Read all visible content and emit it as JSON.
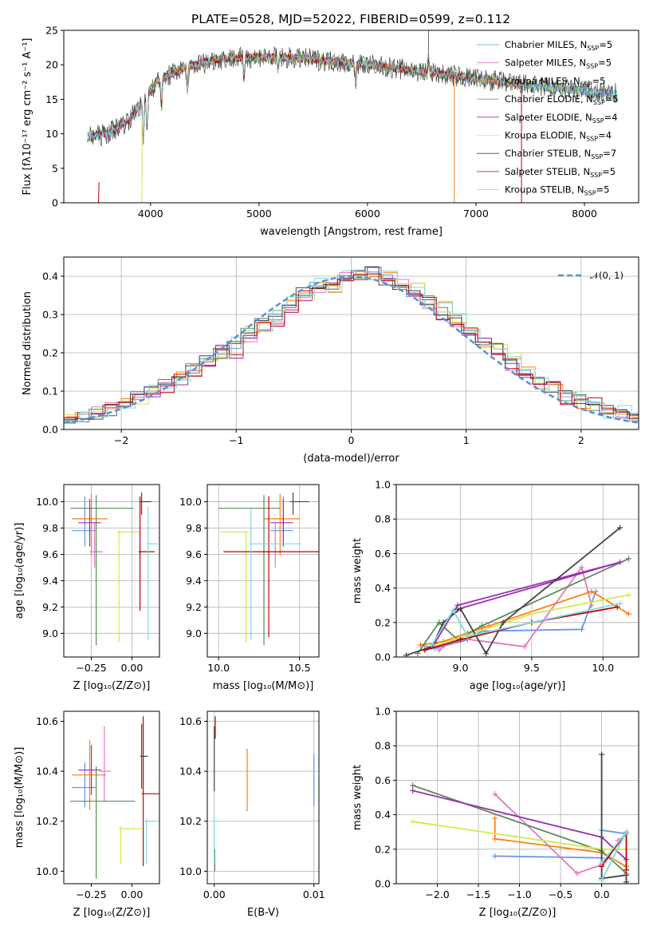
{
  "title": "PLATE=0528, MJD=52022, FIBERID=0599, z=0.112",
  "models": [
    {
      "name": "Chabrier MILES",
      "nssp": "5",
      "color": "#6495ed"
    },
    {
      "name": "Salpeter MILES",
      "nssp": "5",
      "color": "#e377c2"
    },
    {
      "name": "Kroupa MILES",
      "nssp": "5",
      "color": "#ff7f0e"
    },
    {
      "name": "Chabrier ELODIE",
      "nssp": "5",
      "color": "#5a8a5a"
    },
    {
      "name": "Salpeter ELODIE",
      "nssp": "4",
      "color": "#9b30b0"
    },
    {
      "name": "Kroupa ELODIE",
      "nssp": "4",
      "color": "#d4e84a"
    },
    {
      "name": "Chabrier STELIB",
      "nssp": "7",
      "color": "#444444"
    },
    {
      "name": "Salpeter STELIB",
      "nssp": "5",
      "color": "#c00000"
    },
    {
      "name": "Kroupa STELIB",
      "nssp": "5",
      "color": "#7fd8e0"
    }
  ],
  "chart_data": [
    {
      "type": "line",
      "id": "spectrum",
      "title": "PLATE=0528, MJD=52022, FIBERID=0599, z=0.112",
      "xlabel": "wavelength [Angstrom, rest frame]",
      "ylabel": "Flux [fλ10⁻¹⁷ erg cm⁻² s⁻¹ A⁻¹]",
      "xlim": [
        3200,
        8500
      ],
      "ylim": [
        0,
        25
      ],
      "xticks": [
        "4000",
        "5000",
        "6000",
        "7000",
        "8000"
      ],
      "yticks": [
        "0",
        "5",
        "10",
        "15",
        "20",
        "25"
      ],
      "continuum": [
        [
          3420,
          9.5
        ],
        [
          3600,
          10
        ],
        [
          3800,
          12
        ],
        [
          3950,
          15
        ],
        [
          4050,
          17.5
        ],
        [
          4300,
          19.5
        ],
        [
          4600,
          20.8
        ],
        [
          5000,
          21.2
        ],
        [
          5500,
          20.8
        ],
        [
          6000,
          20
        ],
        [
          6500,
          19
        ],
        [
          7000,
          18
        ],
        [
          7500,
          17
        ],
        [
          8000,
          16.2
        ],
        [
          8300,
          15.8
        ]
      ],
      "legend_suffix": "N_SSP="
    },
    {
      "type": "line",
      "id": "residuals",
      "xlabel": "(data-model)/error",
      "ylabel": "Normed distribution",
      "xlim": [
        -2.5,
        2.5
      ],
      "ylim": [
        0,
        0.45
      ],
      "xticks": [
        "−2",
        "−1",
        "0",
        "1",
        "2"
      ],
      "yticks": [
        "0.0",
        "0.1",
        "0.2",
        "0.3",
        "0.4"
      ],
      "reference_curve": "𝒩(0, 1)",
      "reference_color": "#5b8fd8",
      "histograms": [
        [
          0.025,
          0.03,
          0.04,
          0.05,
          0.07,
          0.09,
          0.1,
          0.12,
          0.14,
          0.16,
          0.18,
          0.2,
          0.22,
          0.25,
          0.28,
          0.3,
          0.33,
          0.36,
          0.37,
          0.38,
          0.39,
          0.4,
          0.41,
          0.39,
          0.38,
          0.36,
          0.34,
          0.31,
          0.29,
          0.26,
          0.23,
          0.21,
          0.18,
          0.15,
          0.13,
          0.11,
          0.09,
          0.08,
          0.06,
          0.05,
          0.04,
          0.03
        ],
        [
          0.02,
          0.03,
          0.05,
          0.06,
          0.06,
          0.09,
          0.09,
          0.11,
          0.13,
          0.15,
          0.16,
          0.21,
          0.2,
          0.24,
          0.27,
          0.28,
          0.31,
          0.35,
          0.36,
          0.38,
          0.4,
          0.39,
          0.42,
          0.4,
          0.39,
          0.35,
          0.33,
          0.3,
          0.27,
          0.25,
          0.24,
          0.2,
          0.16,
          0.14,
          0.12,
          0.12,
          0.08,
          0.07,
          0.07,
          0.05,
          0.04,
          0.03
        ],
        [
          0.03,
          0.04,
          0.04,
          0.06,
          0.07,
          0.08,
          0.11,
          0.12,
          0.14,
          0.17,
          0.19,
          0.19,
          0.23,
          0.26,
          0.27,
          0.31,
          0.34,
          0.35,
          0.38,
          0.37,
          0.41,
          0.4,
          0.4,
          0.41,
          0.37,
          0.38,
          0.32,
          0.32,
          0.29,
          0.26,
          0.22,
          0.21,
          0.19,
          0.16,
          0.12,
          0.11,
          0.1,
          0.07,
          0.06,
          0.04,
          0.05,
          0.03
        ]
      ]
    },
    {
      "type": "scatter",
      "id": "age-z",
      "xlabel": "Z [log₁₀(Z/Z⊙)]",
      "ylabel": "age  [log₁₀(age/yr)]",
      "xlim": [
        -0.42,
        0.17
      ],
      "ylim": [
        8.82,
        10.13
      ],
      "xticks": [
        "−0.25",
        "0.00"
      ],
      "yticks": [
        "9.0",
        "9.2",
        "9.4",
        "9.6",
        "9.8",
        "10.0"
      ],
      "points": [
        {
          "model": 0,
          "x": -0.29,
          "y": 9.78,
          "xerr": [
            0.08,
            0.07
          ],
          "yerr": [
            0.12,
            0.26
          ]
        },
        {
          "model": 1,
          "x": -0.23,
          "y": 9.62,
          "xerr": [
            0.03,
            0.05
          ],
          "yerr": [
            0.12,
            0.22
          ]
        },
        {
          "model": 2,
          "x": -0.25,
          "y": 9.87,
          "xerr": [
            0.12,
            0.1
          ],
          "yerr": [
            0.28,
            0.19
          ]
        },
        {
          "model": 3,
          "x": -0.22,
          "y": 9.95,
          "xerr": [
            0.16,
            0.23
          ],
          "yerr": [
            1.04,
            0.1
          ]
        },
        {
          "model": 4,
          "x": -0.26,
          "y": 9.84,
          "xerr": [
            0.07,
            0.07
          ],
          "yerr": [
            0.18,
            0.18
          ]
        },
        {
          "model": 5,
          "x": -0.08,
          "y": 9.77,
          "xerr": [
            0.01,
            0.13
          ],
          "yerr": [
            0.84,
            0.01
          ]
        },
        {
          "model": 6,
          "x": 0.06,
          "y": 10.0,
          "xerr": [
            0.01,
            0.06
          ],
          "yerr": [
            0.1,
            0.07
          ]
        },
        {
          "model": 7,
          "x": 0.05,
          "y": 9.62,
          "xerr": [
            0.01,
            0.09
          ],
          "yerr": [
            0.45,
            0.42
          ]
        },
        {
          "model": 8,
          "x": 0.1,
          "y": 9.68,
          "xerr": [
            0.01,
            0.06
          ],
          "yerr": [
            0.73,
            0.28
          ]
        }
      ]
    },
    {
      "type": "scatter",
      "id": "age-mass",
      "xlabel": "mass [log₁₀(M/M⊙)]",
      "ylabel": "",
      "xlim": [
        9.93,
        10.62
      ],
      "ylim": [
        8.82,
        10.13
      ],
      "xticks": [
        "10.0",
        "10.5"
      ],
      "yticks": [
        "9.0",
        "9.2",
        "9.4",
        "9.6",
        "9.8",
        "10.0"
      ],
      "points": [
        {
          "model": 0,
          "x": 10.4,
          "y": 9.78,
          "xerr": [
            0.08,
            0.06
          ],
          "yerr": [
            0.12,
            0.26
          ]
        },
        {
          "model": 1,
          "x": 10.35,
          "y": 9.62,
          "xerr": [
            0.04,
            0.06
          ],
          "yerr": [
            0.12,
            0.22
          ]
        },
        {
          "model": 2,
          "x": 10.38,
          "y": 9.87,
          "xerr": [
            0.1,
            0.12
          ],
          "yerr": [
            0.28,
            0.19
          ]
        },
        {
          "model": 3,
          "x": 10.28,
          "y": 9.95,
          "xerr": [
            0.28,
            0.1
          ],
          "yerr": [
            1.04,
            0.1
          ]
        },
        {
          "model": 4,
          "x": 10.4,
          "y": 9.84,
          "xerr": [
            0.08,
            0.06
          ],
          "yerr": [
            0.18,
            0.18
          ]
        },
        {
          "model": 5,
          "x": 10.17,
          "y": 9.77,
          "xerr": [
            0.16,
            0.02
          ],
          "yerr": [
            0.84,
            0.01
          ]
        },
        {
          "model": 6,
          "x": 10.46,
          "y": 10.0,
          "xerr": [
            0.02,
            0.1
          ],
          "yerr": [
            0.1,
            0.07
          ]
        },
        {
          "model": 7,
          "x": 10.31,
          "y": 9.62,
          "xerr": [
            0.28,
            0.32
          ],
          "yerr": [
            0.65,
            0.42
          ]
        },
        {
          "model": 8,
          "x": 10.2,
          "y": 9.68,
          "xerr": [
            0.01,
            0.31
          ],
          "yerr": [
            0.73,
            0.28
          ]
        }
      ]
    },
    {
      "type": "line",
      "id": "weight-age",
      "xlabel": "age  [log₁₀(age/yr)]",
      "ylabel": "mass weight",
      "xlim": [
        8.55,
        10.25
      ],
      "ylim": [
        0,
        1
      ],
      "xticks": [
        "9.0",
        "9.5",
        "10.0"
      ],
      "yticks": [
        "0.0",
        "0.2",
        "0.4",
        "0.6",
        "0.8",
        "1.0"
      ],
      "series": [
        [
          [
            8.72,
            0.07
          ],
          [
            8.82,
            0.05
          ],
          [
            9.05,
            0.1
          ],
          [
            9.15,
            0.15
          ],
          [
            9.85,
            0.16
          ],
          [
            9.95,
            0.38
          ]
        ],
        [
          [
            8.85,
            0.04
          ],
          [
            8.98,
            0.11
          ],
          [
            9.45,
            0.06
          ],
          [
            9.85,
            0.52
          ],
          [
            9.92,
            0.3
          ]
        ],
        [
          [
            8.72,
            0.07
          ],
          [
            8.88,
            0.09
          ],
          [
            9.05,
            0.14
          ],
          [
            9.2,
            0.18
          ],
          [
            9.92,
            0.38
          ],
          [
            10.18,
            0.25
          ]
        ],
        [
          [
            8.7,
            0.02
          ],
          [
            8.85,
            0.2
          ],
          [
            8.98,
            0.1
          ],
          [
            9.15,
            0.18
          ],
          [
            10.18,
            0.57
          ]
        ],
        [
          [
            8.82,
            0.08
          ],
          [
            8.98,
            0.3
          ],
          [
            10.12,
            0.55
          ],
          [
            8.95,
            0.27
          ]
        ],
        [
          [
            8.8,
            0.06
          ],
          [
            8.95,
            0.1
          ],
          [
            9.5,
            0.25
          ],
          [
            10.18,
            0.36
          ]
        ],
        [
          [
            8.62,
            0.01
          ],
          [
            8.8,
            0.06
          ],
          [
            8.88,
            0.2
          ],
          [
            9.0,
            0.28
          ],
          [
            9.18,
            0.02
          ],
          [
            9.3,
            0.2
          ],
          [
            10.12,
            0.75
          ]
        ],
        [
          [
            8.75,
            0.04
          ],
          [
            9.0,
            0.1
          ],
          [
            9.5,
            0.2
          ],
          [
            10.1,
            0.29
          ]
        ],
        [
          [
            8.8,
            0.07
          ],
          [
            8.95,
            0.27
          ],
          [
            9.05,
            0.12
          ],
          [
            10.12,
            0.31
          ]
        ]
      ]
    },
    {
      "type": "scatter",
      "id": "mass-z",
      "xlabel": "Z [log₁₀(Z/Z⊙)]",
      "ylabel": "mass [log₁₀(M/M⊙)]",
      "xlim": [
        -0.42,
        0.17
      ],
      "ylim": [
        9.95,
        10.64
      ],
      "xticks": [
        "−0.25",
        "0.00"
      ],
      "yticks": [
        "10.0",
        "10.2",
        "10.4",
        "10.6"
      ],
      "points": [
        {
          "model": 0,
          "x": -0.29,
          "y": 10.335,
          "xerr": [
            0.08,
            0.07
          ],
          "yerr": [
            0.08,
            0.1
          ]
        },
        {
          "model": 1,
          "x": -0.17,
          "y": 10.4,
          "xerr": [
            0.03,
            0.04
          ],
          "yerr": [
            0.12,
            0.18
          ]
        },
        {
          "model": 2,
          "x": -0.26,
          "y": 10.385,
          "xerr": [
            0.11,
            0.1
          ],
          "yerr": [
            0.14,
            0.14
          ]
        },
        {
          "model": 3,
          "x": -0.22,
          "y": 10.28,
          "xerr": [
            0.16,
            0.24
          ],
          "yerr": [
            0.31,
            0.14
          ]
        },
        {
          "model": 4,
          "x": -0.25,
          "y": 10.405,
          "xerr": [
            0.08,
            0.06
          ],
          "yerr": [
            0.1,
            0.1
          ]
        },
        {
          "model": 5,
          "x": -0.07,
          "y": 10.17,
          "xerr": [
            0.01,
            0.13
          ],
          "yerr": [
            0.14,
            0.01
          ]
        },
        {
          "model": 6,
          "x": 0.06,
          "y": 10.46,
          "xerr": [
            0.01,
            0.04
          ],
          "yerr": [
            0.13,
            0.13
          ]
        },
        {
          "model": 7,
          "x": 0.07,
          "y": 10.31,
          "xerr": [
            0.01,
            0.11
          ],
          "yerr": [
            0.29,
            0.31
          ]
        },
        {
          "model": 8,
          "x": 0.09,
          "y": 10.2,
          "xerr": [
            0.01,
            0.09
          ],
          "yerr": [
            0.17,
            0.01
          ]
        }
      ]
    },
    {
      "type": "scatter",
      "id": "mass-ebv",
      "xlabel": "E(B-V)",
      "ylabel": "",
      "xlim": [
        -0.0007,
        0.0105
      ],
      "ylim": [
        9.95,
        10.64
      ],
      "xticks": [
        "0.00",
        "0.01"
      ],
      "yticks": [
        "10.0",
        "10.2",
        "10.4",
        "10.6"
      ],
      "points": [
        {
          "model": 0,
          "x": 0.01,
          "y": 10.36,
          "yerr": [
            0.1,
            0.11
          ]
        },
        {
          "model": 2,
          "x": 0.0033,
          "y": 10.38,
          "yerr": [
            0.14,
            0.11
          ]
        },
        {
          "model": 3,
          "x": 5e-05,
          "y": 10.05,
          "yerr": [
            0.05,
            0.04
          ]
        },
        {
          "model": 7,
          "x": 0.0001,
          "y": 10.55,
          "yerr": [
            0.02,
            0.07
          ]
        },
        {
          "model": 8,
          "x": 0.0,
          "y": 10.2,
          "yerr": [
            0.17,
            0.02
          ]
        },
        {
          "model": 6,
          "x": 0.0,
          "y": 10.45,
          "yerr": [
            0.13,
            0.13
          ]
        }
      ]
    },
    {
      "type": "line",
      "id": "weight-z",
      "xlabel": "Z [log₁₀(Z/Z⊙)]",
      "ylabel": "mass weight",
      "xlim": [
        -2.5,
        0.45
      ],
      "ylim": [
        0,
        1
      ],
      "xticks": [
        "−2.0",
        "−1.5",
        "−1.0",
        "−0.5",
        "0.0"
      ],
      "yticks": [
        "0.0",
        "0.2",
        "0.4",
        "0.6",
        "0.8",
        "1.0"
      ],
      "series": [
        [
          [
            -1.3,
            0.16
          ],
          [
            0.0,
            0.15
          ],
          [
            0.0,
            0.31
          ],
          [
            0.3,
            0.29
          ]
        ],
        [
          [
            -1.3,
            0.52
          ],
          [
            -0.3,
            0.06
          ],
          [
            0.0,
            0.11
          ],
          [
            0.3,
            0.29
          ],
          [
            0.2,
            0.25
          ]
        ],
        [
          [
            -1.3,
            0.38
          ],
          [
            -1.3,
            0.26
          ],
          [
            0.0,
            0.18
          ],
          [
            0.3,
            0.1
          ]
        ],
        [
          [
            -2.3,
            0.57
          ],
          [
            0.0,
            0.19
          ],
          [
            0.3,
            0.06
          ]
        ],
        [
          [
            -2.3,
            0.54
          ],
          [
            0.0,
            0.27
          ],
          [
            0.3,
            0.14
          ]
        ],
        [
          [
            -2.3,
            0.36
          ],
          [
            0.0,
            0.2
          ],
          [
            0.3,
            0.2
          ]
        ],
        [
          [
            0.0,
            0.75
          ],
          [
            0.0,
            0.03
          ],
          [
            0.3,
            0.05
          ],
          [
            0.3,
            0.01
          ]
        ],
        [
          [
            0.0,
            0.1
          ],
          [
            0.3,
            0.3
          ],
          [
            0.3,
            0.08
          ]
        ],
        [
          [
            0.0,
            0.12
          ],
          [
            0.3,
            0.3
          ],
          [
            0.0,
            0.02
          ]
        ]
      ]
    }
  ]
}
